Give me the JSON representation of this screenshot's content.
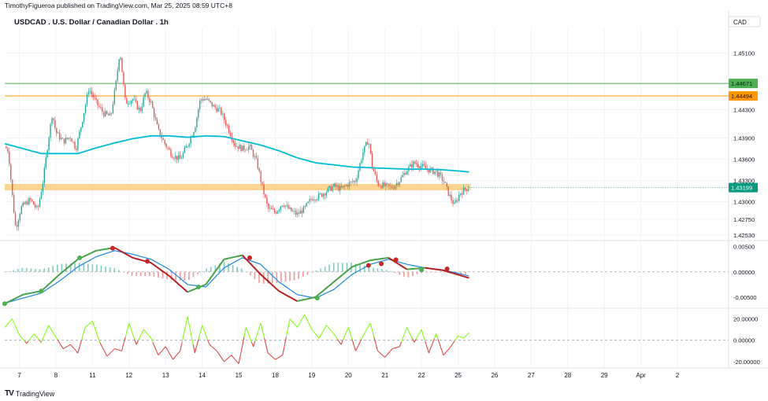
{
  "header": {
    "publish_line": "TimothyFigueroa published on TradingView.com, Mar 25, 2025 08:59 UTC+8",
    "symbol_title": "USDCAD . U.S. Dollar / Canadian Dollar . 1h",
    "currency": "CAD"
  },
  "footer": {
    "brand": "TradingView",
    "logo_mark": "TV"
  },
  "colors": {
    "up": "#26a69a",
    "down": "#ef5350",
    "ma": "#00bcd4",
    "green_line": "#4caf50",
    "orange_line": "#ff9800",
    "zone": "#ffcc80",
    "last_price": "#089981",
    "macd_fast": "#43a047",
    "macd_signal_dark": "#b71c1c",
    "macd_slow": "#1e88e5",
    "rsi_up": "#76ff03",
    "rsi_down": "#e53935"
  },
  "chart_data": [
    {
      "type": "candlestick",
      "pane": "price",
      "title": "USDCAD . U.S. Dollar / Canadian Dollar . 1h",
      "y_ticks": [
        "1.45100",
        "1.44300",
        "1.43900",
        "1.43600",
        "1.43300",
        "1.43000",
        "1.42750",
        "1.42530"
      ],
      "y_tick_values": [
        1.451,
        1.443,
        1.439,
        1.436,
        1.433,
        1.43,
        1.4275,
        1.4253
      ],
      "ylim": [
        1.4245,
        1.4545
      ],
      "x_ticks": [
        "7",
        "8",
        "11",
        "12",
        "13",
        "14",
        "15",
        "18",
        "19",
        "20",
        "21",
        "22",
        "25",
        "26",
        "27",
        "28",
        "29",
        "Apr",
        "2"
      ],
      "x_range_days": [
        0,
        19.8
      ],
      "levels": [
        {
          "label": "1.44671",
          "value": 1.44671,
          "color": "#4caf50"
        },
        {
          "label": "1.44494",
          "value": 1.44494,
          "color": "#ff9800"
        },
        {
          "label": "1.43199",
          "value": 1.43199,
          "color": "#089981",
          "kind": "last"
        }
      ],
      "zone": {
        "low": 1.4316,
        "high": 1.4325
      },
      "close_path": [
        [
          0.0,
          1.4378
        ],
        [
          0.1,
          1.4372
        ],
        [
          0.2,
          1.4312
        ],
        [
          0.3,
          1.4262
        ],
        [
          0.45,
          1.4292
        ],
        [
          0.7,
          1.4303
        ],
        [
          0.9,
          1.4288
        ],
        [
          1.05,
          1.433
        ],
        [
          1.2,
          1.439
        ],
        [
          1.3,
          1.4425
        ],
        [
          1.4,
          1.4398
        ],
        [
          1.6,
          1.4385
        ],
        [
          1.8,
          1.4392
        ],
        [
          1.95,
          1.4375
        ],
        [
          2.1,
          1.441
        ],
        [
          2.3,
          1.446
        ],
        [
          2.5,
          1.444
        ],
        [
          2.7,
          1.4425
        ],
        [
          2.9,
          1.442
        ],
        [
          3.05,
          1.447
        ],
        [
          3.15,
          1.4515
        ],
        [
          3.3,
          1.444
        ],
        [
          3.5,
          1.4445
        ],
        [
          3.7,
          1.4428
        ],
        [
          3.85,
          1.4455
        ],
        [
          4.0,
          1.444
        ],
        [
          4.2,
          1.44
        ],
        [
          4.4,
          1.438
        ],
        [
          4.6,
          1.4365
        ],
        [
          4.8,
          1.436
        ],
        [
          5.0,
          1.438
        ],
        [
          5.2,
          1.4405
        ],
        [
          5.35,
          1.4445
        ],
        [
          5.5,
          1.4445
        ],
        [
          5.7,
          1.4435
        ],
        [
          5.9,
          1.4428
        ],
        [
          6.1,
          1.4405
        ],
        [
          6.3,
          1.438
        ],
        [
          6.5,
          1.4375
        ],
        [
          6.7,
          1.4378
        ],
        [
          6.9,
          1.4355
        ],
        [
          7.05,
          1.432
        ],
        [
          7.2,
          1.429
        ],
        [
          7.4,
          1.4285
        ],
        [
          7.6,
          1.4298
        ],
        [
          7.8,
          1.4288
        ],
        [
          8.0,
          1.4282
        ],
        [
          8.2,
          1.429
        ],
        [
          8.4,
          1.4305
        ],
        [
          8.6,
          1.4308
        ],
        [
          8.8,
          1.4315
        ],
        [
          9.0,
          1.4322
        ],
        [
          9.2,
          1.4318
        ],
        [
          9.4,
          1.4325
        ],
        [
          9.6,
          1.433
        ],
        [
          9.8,
          1.437
        ],
        [
          9.95,
          1.4388
        ],
        [
          10.05,
          1.435
        ],
        [
          10.2,
          1.4325
        ],
        [
          10.4,
          1.4322
        ],
        [
          10.6,
          1.432
        ],
        [
          10.8,
          1.433
        ],
        [
          11.0,
          1.4345
        ],
        [
          11.2,
          1.4355
        ],
        [
          11.4,
          1.435
        ],
        [
          11.6,
          1.4345
        ],
        [
          11.8,
          1.4342
        ],
        [
          12.0,
          1.433
        ],
        [
          12.15,
          1.431
        ],
        [
          12.3,
          1.4295
        ],
        [
          12.45,
          1.4312
        ],
        [
          12.6,
          1.4318
        ],
        [
          12.7,
          1.43199
        ]
      ],
      "series": [
        {
          "name": "",
          "kind": "moving-average",
          "points": [
            [
              0,
              1.4382
            ],
            [
              1,
              1.4368
            ],
            [
              2,
              1.4368
            ],
            [
              2.5,
              1.4376
            ],
            [
              3,
              1.4383
            ],
            [
              3.5,
              1.4389
            ],
            [
              4,
              1.4393
            ],
            [
              4.5,
              1.4393
            ],
            [
              5,
              1.4391
            ],
            [
              5.5,
              1.4393
            ],
            [
              6,
              1.4392
            ],
            [
              6.5,
              1.4386
            ],
            [
              7,
              1.438
            ],
            [
              7.5,
              1.4372
            ],
            [
              8,
              1.4362
            ],
            [
              8.5,
              1.4355
            ],
            [
              9,
              1.4352
            ],
            [
              9.5,
              1.4349
            ],
            [
              10,
              1.4348
            ],
            [
              10.5,
              1.4347
            ],
            [
              11,
              1.4346
            ],
            [
              11.5,
              1.4346
            ],
            [
              12,
              1.4345
            ],
            [
              12.5,
              1.4343
            ],
            [
              12.7,
              1.4342
            ]
          ]
        }
      ]
    },
    {
      "type": "line",
      "pane": "oscillator",
      "y_ticks": [
        "0.00500",
        "0.00000",
        "-0.00500"
      ],
      "y_tick_values": [
        0.005,
        0.0,
        -0.005
      ],
      "ylim": [
        -0.0072,
        0.0062
      ],
      "series": [
        {
          "name": "",
          "kind": "fast",
          "points": [
            [
              0,
              -0.0063
            ],
            [
              0.5,
              -0.0045
            ],
            [
              1,
              -0.0038
            ],
            [
              1.5,
              -0.0005
            ],
            [
              2,
              0.0025
            ],
            [
              2.5,
              0.0042
            ],
            [
              3,
              0.0048
            ],
            [
              3.5,
              0.0028
            ],
            [
              4,
              0.0018
            ],
            [
              4.5,
              -0.0008
            ],
            [
              5,
              -0.004
            ],
            [
              5.5,
              -0.0025
            ],
            [
              6,
              0.0025
            ],
            [
              6.5,
              0.0033
            ],
            [
              7,
              -0.0005
            ],
            [
              7.5,
              -0.0038
            ],
            [
              8,
              -0.0058
            ],
            [
              8.5,
              -0.005
            ],
            [
              9,
              -0.002
            ],
            [
              9.5,
              0.001
            ],
            [
              10,
              0.0023
            ],
            [
              10.5,
              0.0028
            ],
            [
              11,
              0.0005
            ],
            [
              11.5,
              0.0008
            ],
            [
              12,
              0.0003
            ],
            [
              12.7,
              -0.0012
            ]
          ]
        },
        {
          "name": "",
          "kind": "slow",
          "points": [
            [
              0,
              -0.0062
            ],
            [
              0.5,
              -0.0052
            ],
            [
              1,
              -0.0042
            ],
            [
              1.5,
              -0.0018
            ],
            [
              2,
              0.001
            ],
            [
              2.5,
              0.003
            ],
            [
              3,
              0.0042
            ],
            [
              3.5,
              0.0035
            ],
            [
              4,
              0.0025
            ],
            [
              4.5,
              0.0005
            ],
            [
              5,
              -0.0025
            ],
            [
              5.5,
              -0.003
            ],
            [
              6,
              0.0008
            ],
            [
              6.5,
              0.0028
            ],
            [
              7,
              0.0015
            ],
            [
              7.5,
              -0.002
            ],
            [
              8,
              -0.0045
            ],
            [
              8.5,
              -0.0052
            ],
            [
              9,
              -0.0035
            ],
            [
              9.5,
              -0.0005
            ],
            [
              10,
              0.0015
            ],
            [
              10.5,
              0.0025
            ],
            [
              11,
              0.0015
            ],
            [
              11.5,
              0.0008
            ],
            [
              12,
              0.0004
            ],
            [
              12.7,
              -0.0008
            ]
          ]
        }
      ],
      "markers": [
        {
          "x": 0.0,
          "y": -0.0063,
          "color": "green"
        },
        {
          "x": 1.0,
          "y": -0.0038,
          "color": "green"
        },
        {
          "x": 2.05,
          "y": 0.0028,
          "color": "green"
        },
        {
          "x": 2.95,
          "y": 0.0047,
          "color": "red"
        },
        {
          "x": 3.9,
          "y": 0.0021,
          "color": "red"
        },
        {
          "x": 5.3,
          "y": -0.003,
          "color": "green"
        },
        {
          "x": 6.7,
          "y": 0.0028,
          "color": "red"
        },
        {
          "x": 8.55,
          "y": -0.0052,
          "color": "green"
        },
        {
          "x": 9.95,
          "y": 0.0013,
          "color": "red"
        },
        {
          "x": 10.3,
          "y": 0.0016,
          "color": "red"
        },
        {
          "x": 10.7,
          "y": 0.0024,
          "color": "red"
        },
        {
          "x": 11.4,
          "y": 0.0004,
          "color": "green"
        },
        {
          "x": 12.1,
          "y": 0.0006,
          "color": "red"
        }
      ]
    },
    {
      "type": "line",
      "pane": "momentum",
      "y_ticks": [
        "20.00000",
        "0.00000",
        "-20.00000"
      ],
      "y_tick_values": [
        20,
        0,
        -20
      ],
      "ylim": [
        -26,
        30
      ],
      "series": [
        {
          "name": "",
          "kind": "momentum",
          "points": [
            [
              0,
              12
            ],
            [
              0.2,
              20
            ],
            [
              0.4,
              5
            ],
            [
              0.6,
              -3
            ],
            [
              0.8,
              6
            ],
            [
              1.0,
              -2
            ],
            [
              1.2,
              14
            ],
            [
              1.4,
              3
            ],
            [
              1.6,
              -8
            ],
            [
              1.8,
              -4
            ],
            [
              2.0,
              -12
            ],
            [
              2.2,
              12
            ],
            [
              2.4,
              18
            ],
            [
              2.6,
              -2
            ],
            [
              2.8,
              -15
            ],
            [
              3.0,
              -8
            ],
            [
              3.2,
              -10
            ],
            [
              3.4,
              16
            ],
            [
              3.6,
              -4
            ],
            [
              3.8,
              10
            ],
            [
              4.0,
              2
            ],
            [
              4.2,
              -14
            ],
            [
              4.4,
              -6
            ],
            [
              4.6,
              -18
            ],
            [
              4.8,
              -10
            ],
            [
              5.0,
              22
            ],
            [
              5.2,
              -12
            ],
            [
              5.4,
              14
            ],
            [
              5.6,
              -4
            ],
            [
              5.8,
              -10
            ],
            [
              6.0,
              -20
            ],
            [
              6.2,
              -14
            ],
            [
              6.4,
              -22
            ],
            [
              6.6,
              12
            ],
            [
              6.8,
              -6
            ],
            [
              7.0,
              16
            ],
            [
              7.2,
              -12
            ],
            [
              7.4,
              -18
            ],
            [
              7.6,
              -14
            ],
            [
              7.8,
              20
            ],
            [
              8.0,
              12
            ],
            [
              8.2,
              24
            ],
            [
              8.4,
              10
            ],
            [
              8.6,
              2
            ],
            [
              8.8,
              14
            ],
            [
              9.0,
              6
            ],
            [
              9.2,
              -4
            ],
            [
              9.4,
              12
            ],
            [
              9.6,
              -10
            ],
            [
              9.8,
              4
            ],
            [
              10.0,
              16
            ],
            [
              10.2,
              -10
            ],
            [
              10.4,
              -16
            ],
            [
              10.6,
              -8
            ],
            [
              10.8,
              -6
            ],
            [
              11.0,
              12
            ],
            [
              11.2,
              -2
            ],
            [
              11.4,
              10
            ],
            [
              11.6,
              -12
            ],
            [
              11.8,
              6
            ],
            [
              12.0,
              -14
            ],
            [
              12.2,
              -6
            ],
            [
              12.4,
              4
            ],
            [
              12.55,
              2
            ],
            [
              12.7,
              7
            ]
          ]
        }
      ]
    }
  ]
}
